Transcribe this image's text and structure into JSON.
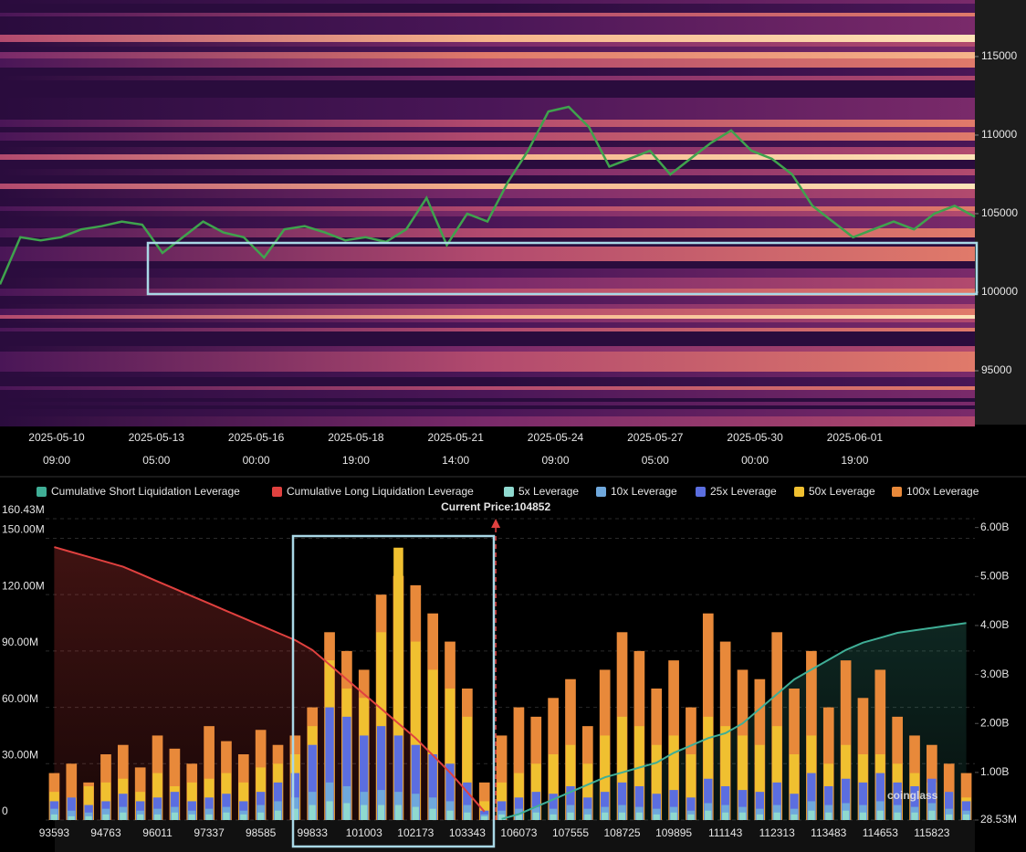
{
  "chart_data": [
    {
      "type": "heatmap",
      "ylim": [
        91570,
        118600
      ],
      "yticks": [
        95000,
        100000,
        105000,
        110000,
        115000
      ],
      "x_labels": [
        {
          "date": "2025-05-10",
          "time": "09:00"
        },
        {
          "date": "2025-05-13",
          "time": "05:00"
        },
        {
          "date": "2025-05-16",
          "time": "00:00"
        },
        {
          "date": "2025-05-18",
          "time": "19:00"
        },
        {
          "date": "2025-05-21",
          "time": "14:00"
        },
        {
          "date": "2025-05-24",
          "time": "09:00"
        },
        {
          "date": "2025-05-27",
          "time": "05:00"
        },
        {
          "date": "2025-05-30",
          "time": "00:00"
        },
        {
          "date": "2025-06-01",
          "time": "19:00"
        }
      ],
      "price_color": "#3fa34d",
      "price": [
        100500,
        103500,
        103300,
        103500,
        104000,
        104200,
        104500,
        104300,
        102500,
        103500,
        104500,
        103800,
        103500,
        102200,
        104000,
        104200,
        103800,
        103300,
        103500,
        103200,
        104000,
        106000,
        103000,
        105000,
        104500,
        107000,
        109000,
        111500,
        111800,
        110500,
        108000,
        108500,
        109000,
        107500,
        108500,
        109500,
        110300,
        109000,
        108500,
        107500,
        105500,
        104500,
        103500,
        104000,
        104500,
        104000,
        105000,
        105500,
        104800
      ]
    },
    {
      "type": "bar",
      "current_price_label": "Current Price:104852",
      "current_price": 104852,
      "watermark": "coinglass",
      "categories": [
        93593,
        null,
        null,
        94763,
        null,
        null,
        96011,
        null,
        null,
        97337,
        null,
        null,
        98585,
        null,
        null,
        99833,
        null,
        null,
        101003,
        null,
        null,
        102173,
        null,
        null,
        103343,
        null,
        null,
        106073,
        null,
        null,
        107555,
        null,
        null,
        108725,
        null,
        null,
        109895,
        null,
        null,
        111143,
        null,
        null,
        112313,
        null,
        null,
        113483,
        null,
        null,
        114653,
        null,
        null,
        115823,
        null,
        null
      ],
      "ylim": [
        0,
        160.43
      ],
      "yticks": [
        0,
        {
          "value": 30,
          "label": "30.00M"
        },
        {
          "value": 60,
          "label": "60.00M"
        },
        {
          "value": 90,
          "label": "90.00M"
        },
        {
          "value": 120,
          "label": "120.00M"
        },
        {
          "value": 150,
          "label": "150.00M"
        },
        {
          "value": 160.43,
          "label": "160.43M"
        }
      ],
      "y2lim": [
        0.02853,
        6.18
      ],
      "y2ticks": [
        {
          "value": 0.02853,
          "label": "28.53M"
        },
        {
          "value": 1,
          "label": "1.00B"
        },
        {
          "value": 2,
          "label": "2.00B"
        },
        {
          "value": 3,
          "label": "3.00B"
        },
        {
          "value": 4,
          "label": "4.00B"
        },
        {
          "value": 5,
          "label": "5.00B"
        },
        {
          "value": 6,
          "label": "6.00B"
        }
      ],
      "grid": true,
      "series": [
        {
          "name": "Cumulative Short Liquidation Leverage",
          "color": "#3fae96",
          "axis": "y2",
          "values": [
            null,
            null,
            null,
            null,
            null,
            null,
            null,
            null,
            null,
            null,
            null,
            null,
            null,
            null,
            null,
            null,
            null,
            null,
            null,
            null,
            null,
            null,
            null,
            null,
            null,
            null,
            0.05,
            0.15,
            0.3,
            0.45,
            0.6,
            0.75,
            0.9,
            1.0,
            1.1,
            1.2,
            1.4,
            1.55,
            1.7,
            1.8,
            2.0,
            2.3,
            2.6,
            2.9,
            3.1,
            3.3,
            3.5,
            3.65,
            3.75,
            3.85,
            3.9,
            3.95,
            4.0,
            4.05
          ]
        },
        {
          "name": "Cumulative Long Liquidation Leverage",
          "color": "#e0413f",
          "axis": "y2",
          "values": [
            5.6,
            5.5,
            5.4,
            5.3,
            5.2,
            5.05,
            4.9,
            4.75,
            4.6,
            4.45,
            4.3,
            4.15,
            4.0,
            3.85,
            3.7,
            3.5,
            3.2,
            2.9,
            2.6,
            2.3,
            2.0,
            1.7,
            1.35,
            1.0,
            0.6,
            0.2,
            null,
            null,
            null,
            null,
            null,
            null,
            null,
            null,
            null,
            null,
            null,
            null,
            null,
            null,
            null,
            null,
            null,
            null,
            null,
            null,
            null,
            null,
            null,
            null,
            null,
            null,
            null,
            null
          ]
        },
        {
          "name": "5x Leverage",
          "color": "#8fd9cf",
          "values": [
            3,
            2,
            2,
            3,
            4,
            3,
            3,
            4,
            3,
            3,
            4,
            3,
            4,
            5,
            6,
            8,
            10,
            9,
            8,
            8,
            8,
            7,
            6,
            5,
            4,
            2,
            3,
            3,
            4,
            3,
            4,
            3,
            4,
            4,
            4,
            3,
            4,
            3,
            5,
            4,
            4,
            3,
            4,
            3,
            5,
            4,
            5,
            4,
            5,
            4,
            4,
            5,
            3,
            3
          ]
        },
        {
          "name": "10x Leverage",
          "color": "#6fa8dc",
          "values": [
            6,
            5,
            4,
            6,
            7,
            5,
            6,
            7,
            5,
            6,
            7,
            5,
            8,
            10,
            12,
            15,
            20,
            18,
            15,
            16,
            15,
            14,
            12,
            10,
            8,
            3,
            5,
            6,
            7,
            6,
            8,
            6,
            7,
            8,
            7,
            6,
            7,
            5,
            9,
            8,
            7,
            6,
            8,
            6,
            10,
            8,
            9,
            8,
            10,
            8,
            7,
            9,
            6,
            5
          ]
        },
        {
          "name": "25x Leverage",
          "color": "#5b6ee0",
          "values": [
            10,
            12,
            8,
            10,
            14,
            10,
            12,
            15,
            10,
            12,
            14,
            10,
            15,
            20,
            25,
            40,
            60,
            55,
            45,
            50,
            45,
            40,
            35,
            30,
            20,
            5,
            10,
            12,
            15,
            14,
            18,
            12,
            15,
            20,
            18,
            14,
            16,
            12,
            22,
            18,
            16,
            15,
            20,
            14,
            25,
            18,
            22,
            20,
            25,
            20,
            18,
            22,
            15,
            10
          ]
        },
        {
          "name": "50x Leverage",
          "color": "#f0c030",
          "values": [
            15,
            12,
            18,
            20,
            22,
            15,
            25,
            18,
            20,
            22,
            25,
            20,
            28,
            30,
            35,
            50,
            85,
            70,
            65,
            100,
            145,
            95,
            80,
            70,
            55,
            10,
            20,
            25,
            30,
            35,
            40,
            30,
            45,
            55,
            50,
            40,
            45,
            35,
            55,
            50,
            45,
            40,
            50,
            35,
            45,
            30,
            40,
            35,
            35,
            30,
            25,
            20,
            15,
            12
          ]
        },
        {
          "name": "100x Leverage",
          "color": "#e8893a",
          "values": [
            25,
            30,
            20,
            35,
            40,
            28,
            45,
            38,
            30,
            50,
            42,
            35,
            48,
            40,
            45,
            60,
            100,
            90,
            80,
            120,
            130,
            125,
            110,
            95,
            70,
            20,
            45,
            60,
            55,
            65,
            75,
            50,
            80,
            100,
            90,
            70,
            85,
            60,
            110,
            95,
            80,
            75,
            100,
            70,
            90,
            60,
            85,
            65,
            80,
            55,
            45,
            40,
            30,
            25
          ]
        }
      ]
    }
  ]
}
